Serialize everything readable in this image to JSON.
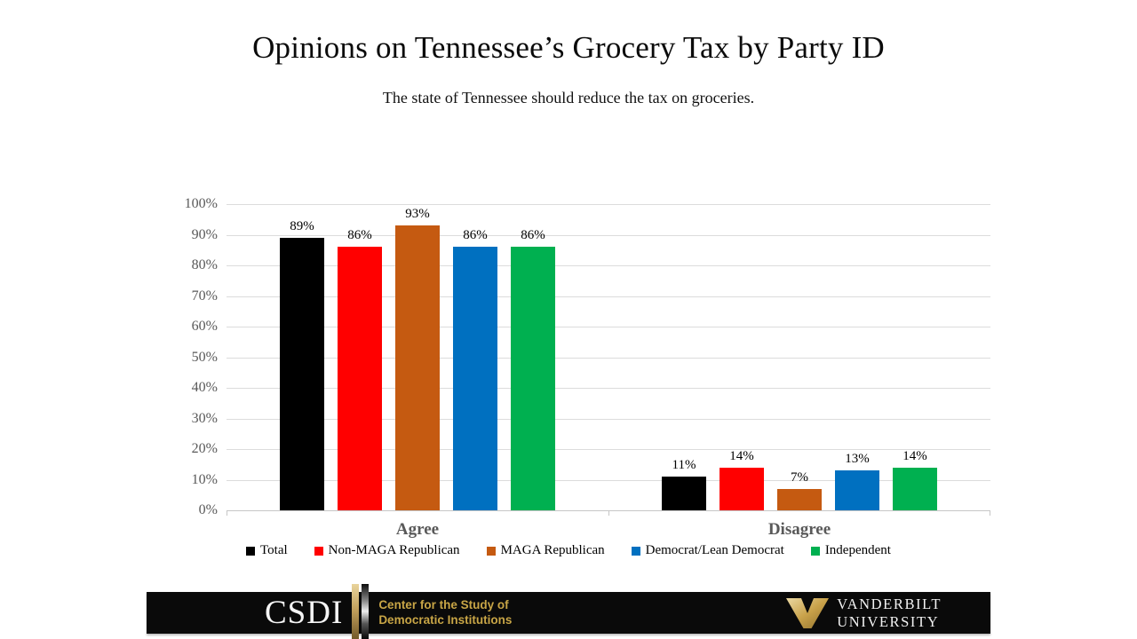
{
  "title": "Opinions on Tennessee’s Grocery Tax by Party ID",
  "subtitle": "The state of Tennessee should reduce the tax on groceries.",
  "chart_data": {
    "type": "bar",
    "categories": [
      "Agree",
      "Disagree"
    ],
    "series": [
      {
        "name": "Total",
        "color": "#000000",
        "values": [
          89,
          11
        ]
      },
      {
        "name": "Non-MAGA Republican",
        "color": "#FF0000",
        "values": [
          86,
          14
        ]
      },
      {
        "name": "MAGA Republican",
        "color": "#C55A11",
        "values": [
          93,
          7
        ]
      },
      {
        "name": "Democrat/Lean Democrat",
        "color": "#0070C0",
        "values": [
          86,
          13
        ]
      },
      {
        "name": "Independent",
        "color": "#00B050",
        "values": [
          86,
          14
        ]
      }
    ],
    "value_suffix": "%",
    "ylim": [
      0,
      100
    ],
    "yticks": [
      "0%",
      "10%",
      "20%",
      "30%",
      "40%",
      "50%",
      "60%",
      "70%",
      "80%",
      "90%",
      "100%"
    ],
    "grid": true,
    "legend_position": "bottom",
    "axis_text_color": "#595959",
    "gridline_color": "#DCDCDC"
  },
  "footer": {
    "csdi": {
      "acronym": "CSDI",
      "caption_line1": "Center for the Study of",
      "caption_line2": "Democratic Institutions",
      "gold_color": "#C8A546"
    },
    "vanderbilt": {
      "initial": "V",
      "wordmark_line1": "VANDERBILT",
      "wordmark_line2": "UNIVERSITY",
      "gold_color": "#C9A24A"
    }
  }
}
